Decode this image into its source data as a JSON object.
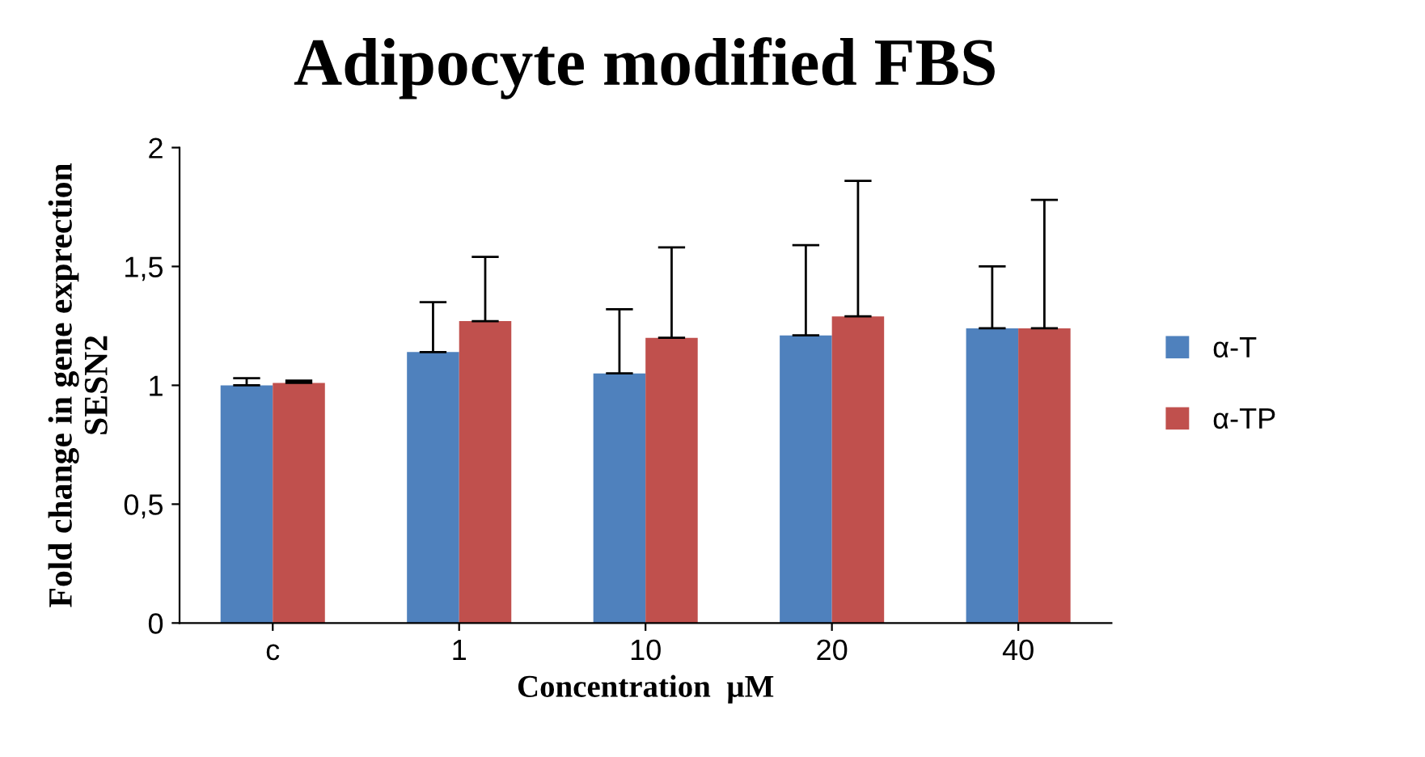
{
  "chart_data": {
    "type": "bar",
    "title": "Adipocyte modified FBS",
    "xlabel": "Concentration  µM",
    "ylabel": "Fold change in gene exprection\nSESN2",
    "categories": [
      "c",
      "1",
      "10",
      "20",
      "40"
    ],
    "series": [
      {
        "name": "α-T",
        "color": "#4f81bd",
        "values": [
          1.0,
          1.14,
          1.05,
          1.21,
          1.24
        ],
        "errors": [
          [
            1.0,
            1.03
          ],
          [
            1.14,
            1.35
          ],
          [
            1.05,
            1.32
          ],
          [
            1.21,
            1.59
          ],
          [
            1.24,
            1.5
          ]
        ]
      },
      {
        "name": "α-TP",
        "color": "#c0504d",
        "values": [
          1.01,
          1.27,
          1.2,
          1.29,
          1.24
        ],
        "errors": [
          [
            1.01,
            1.02
          ],
          [
            1.27,
            1.54
          ],
          [
            1.2,
            1.58
          ],
          [
            1.29,
            1.86
          ],
          [
            1.24,
            1.78
          ]
        ]
      }
    ],
    "ylim": [
      0,
      2
    ],
    "yticks": [
      0,
      {
        "value": 0.5,
        "label": "0,5"
      },
      1,
      {
        "value": 1.5,
        "label": "1,5"
      },
      2
    ],
    "grid": false,
    "legend": "right"
  }
}
